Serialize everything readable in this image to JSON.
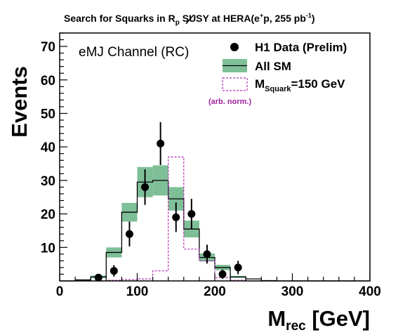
{
  "chart_data": {
    "type": "histogram",
    "title": {
      "prefix": "Search for Squarks in ",
      "rp": "R",
      "rp_sub": "p",
      "middle": " SUSY at HERA(e",
      "sup_plus": "+",
      "after_plus": "p, 255 pb",
      "sup_lumi": "-1",
      "close": ")"
    },
    "channel_label": "eMJ Channel (RC)",
    "ylabel": "Events",
    "xlabel": {
      "main": "M",
      "sub": "rec",
      "unit": " [GeV]"
    },
    "xlim": [
      0,
      400
    ],
    "ylim": [
      0,
      74
    ],
    "x_ticks": [
      0,
      100,
      200,
      300,
      400
    ],
    "y_ticks": [
      10,
      20,
      30,
      40,
      50,
      60,
      70
    ],
    "bin_edges": [
      0,
      20,
      40,
      60,
      80,
      100,
      120,
      140,
      160,
      180,
      200,
      220,
      240,
      260,
      280,
      300,
      320,
      340,
      360,
      380,
      400
    ],
    "sm_prediction": [
      0,
      0.3,
      1.2,
      8.5,
      20.5,
      29.5,
      30,
      24.5,
      15.5,
      7,
      4,
      1.2,
      0.6,
      0.1,
      0,
      0,
      0,
      0,
      0,
      0
    ],
    "sm_uncertainty": [
      0,
      0.1,
      0.4,
      1.5,
      2.8,
      4.5,
      4.5,
      3.5,
      2.5,
      1.2,
      0.8,
      0.3,
      0.1,
      0,
      0,
      0,
      0,
      0,
      0,
      0
    ],
    "signal_squark_150": [
      0,
      0,
      0,
      0.2,
      0.4,
      0.6,
      3,
      37,
      9.5,
      6,
      1,
      0.2,
      0,
      0,
      0,
      0,
      0,
      0,
      0,
      0
    ],
    "data_points": [
      {
        "x": 50,
        "y": 1,
        "err": 1
      },
      {
        "x": 70,
        "y": 3,
        "err": 1.7
      },
      {
        "x": 90,
        "y": 14,
        "err": 3.7
      },
      {
        "x": 110,
        "y": 28,
        "err": 5.3
      },
      {
        "x": 130,
        "y": 41,
        "err": 6.4
      },
      {
        "x": 150,
        "y": 19,
        "err": 4.4
      },
      {
        "x": 170,
        "y": 20,
        "err": 4.5
      },
      {
        "x": 190,
        "y": 8,
        "err": 2.8
      },
      {
        "x": 210,
        "y": 2,
        "err": 1.4
      },
      {
        "x": 230,
        "y": 4,
        "err": 2
      }
    ],
    "legend": {
      "placement": "top-right",
      "data_label": "H1 Data (Prelim)",
      "sm_label": "All SM",
      "signal_main": "M",
      "signal_sub": "Squark",
      "signal_rest": "=150 GeV",
      "signal_note": "(arb. norm.)"
    },
    "colors": {
      "sm_band": "#7fbf98",
      "sm_line": "#000000",
      "signal": "#b030b0",
      "data": "#000000"
    }
  }
}
